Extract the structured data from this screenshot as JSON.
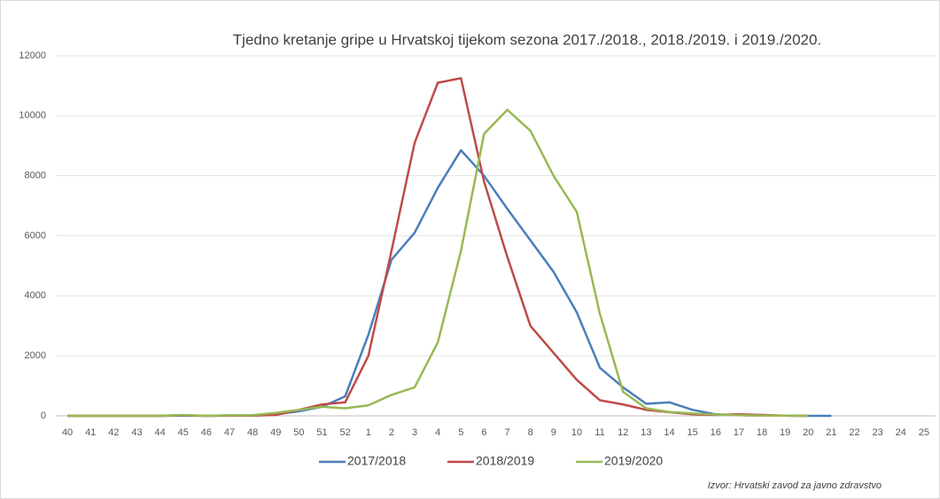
{
  "chart_data": {
    "type": "line",
    "title": "Tjedno kretanje gripe u Hrvatskoj tijekom sezona 2017./2018., 2018./2019. i 2019./2020.",
    "categories": [
      "40",
      "41",
      "42",
      "43",
      "44",
      "45",
      "46",
      "47",
      "48",
      "49",
      "50",
      "51",
      "52",
      "1",
      "2",
      "3",
      "4",
      "5",
      "6",
      "7",
      "8",
      "9",
      "10",
      "11",
      "12",
      "13",
      "14",
      "15",
      "16",
      "17",
      "18",
      "19",
      "20",
      "21",
      "22",
      "23",
      "24",
      "25"
    ],
    "series": [
      {
        "name": "2017/2018",
        "color": "#4a7ebb",
        "values": [
          0,
          0,
          0,
          0,
          0,
          10,
          0,
          10,
          10,
          50,
          150,
          300,
          650,
          2700,
          5200,
          6100,
          7600,
          8850,
          8000,
          6900,
          5850,
          4800,
          3450,
          1600,
          950,
          400,
          450,
          200,
          50,
          20,
          10,
          5,
          0,
          0,
          null,
          null,
          null,
          null
        ]
      },
      {
        "name": "2018/2019",
        "color": "#be4b48",
        "values": [
          0,
          0,
          0,
          0,
          0,
          20,
          0,
          10,
          10,
          30,
          200,
          380,
          450,
          2000,
          5500,
          9100,
          11100,
          11250,
          7800,
          5300,
          3000,
          2100,
          1200,
          520,
          380,
          200,
          120,
          50,
          30,
          50,
          30,
          10,
          0,
          null,
          null,
          null,
          null,
          null
        ]
      },
      {
        "name": "2019/2020",
        "color": "#98b954",
        "values": [
          0,
          0,
          0,
          0,
          0,
          30,
          0,
          20,
          20,
          100,
          200,
          300,
          250,
          350,
          700,
          950,
          2450,
          5500,
          9400,
          10200,
          9500,
          8000,
          6800,
          3400,
          800,
          250,
          130,
          80,
          40,
          20,
          10,
          10,
          0,
          null,
          null,
          null,
          null,
          null
        ]
      }
    ],
    "ylim": [
      0,
      12000
    ],
    "yticks": [
      0,
      2000,
      4000,
      6000,
      8000,
      10000,
      12000
    ],
    "grid": true,
    "legend": "bottom",
    "source": "Izvor: Hrvatski zavod za javno zdravstvo"
  }
}
